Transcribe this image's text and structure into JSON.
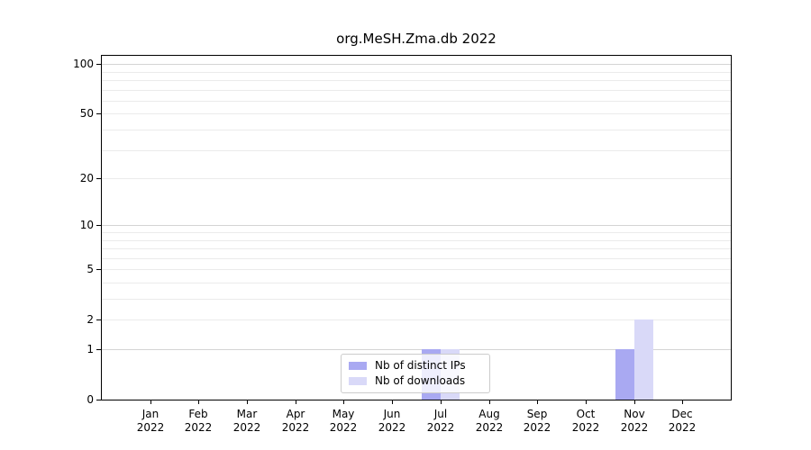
{
  "title": "org.MeSH.Zma.db 2022",
  "chart_data": {
    "type": "bar",
    "title": "org.MeSH.Zma.db 2022",
    "categories": [
      "Jan",
      "Feb",
      "Mar",
      "Apr",
      "May",
      "Jun",
      "Jul",
      "Aug",
      "Sep",
      "Oct",
      "Nov",
      "Dec"
    ],
    "category_year": "2022",
    "series": [
      {
        "name": "Nb of distinct IPs",
        "color": "#a9a9f2",
        "values": [
          0,
          0,
          0,
          0,
          0,
          0,
          1,
          0,
          0,
          0,
          1,
          0
        ]
      },
      {
        "name": "Nb of downloads",
        "color": "#d9d9f8",
        "values": [
          0,
          0,
          0,
          0,
          0,
          0,
          1,
          0,
          0,
          0,
          2,
          0
        ]
      }
    ],
    "y_axis": {
      "scale": "log1p",
      "tick_values": [
        0,
        1,
        2,
        5,
        10,
        20,
        50,
        100
      ],
      "tick_labels": [
        "0",
        "1",
        "2",
        "5",
        "10",
        "20",
        "50",
        "100"
      ],
      "major_gridlines": [
        1,
        10,
        100
      ],
      "minor_gridlines": [
        2,
        3,
        4,
        5,
        6,
        7,
        8,
        9,
        20,
        30,
        40,
        50,
        60,
        70,
        80,
        90
      ],
      "ylim": [
        0,
        112
      ]
    },
    "legend": {
      "position": "lower center"
    },
    "colors": {
      "major_grid": "#d4d4d4",
      "minor_grid": "#ebebeb",
      "axis": "#000000",
      "legend_border": "#cccccc"
    },
    "grid": true
  }
}
